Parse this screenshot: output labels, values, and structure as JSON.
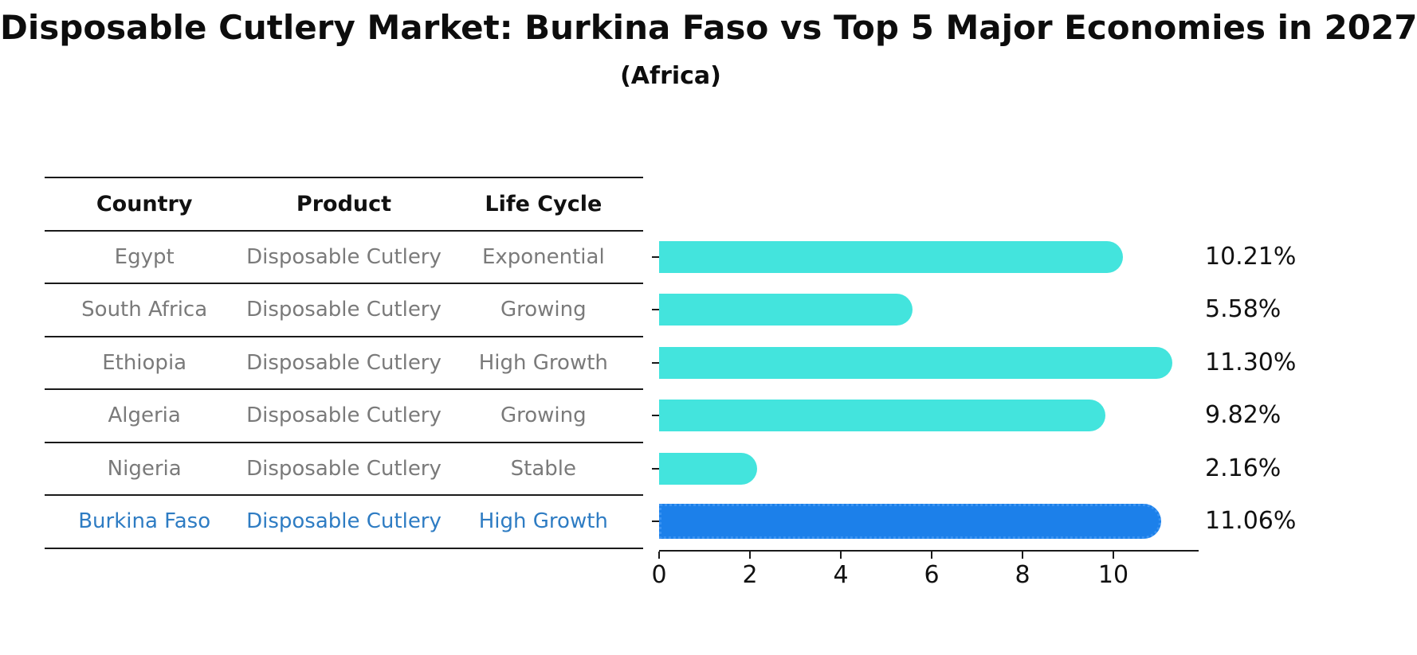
{
  "header": {
    "title": "Disposable Cutlery Market: Burkina Faso vs Top 5 Major Economies in 2027",
    "subtitle": "(Africa)"
  },
  "table": {
    "headers": [
      "Country",
      "Product",
      "Life Cycle"
    ],
    "rows": [
      {
        "country": "Egypt",
        "product": "Disposable Cutlery",
        "life_cycle": "Exponential",
        "highlight": false
      },
      {
        "country": "South Africa",
        "product": "Disposable Cutlery",
        "life_cycle": "Growing",
        "highlight": false
      },
      {
        "country": "Ethiopia",
        "product": "Disposable Cutlery",
        "life_cycle": "High Growth",
        "highlight": false
      },
      {
        "country": "Algeria",
        "product": "Disposable Cutlery",
        "life_cycle": "Growing",
        "highlight": false
      },
      {
        "country": "Nigeria",
        "product": "Disposable Cutlery",
        "life_cycle": "Stable",
        "highlight": false
      },
      {
        "country": "Burkina Faso",
        "product": "Disposable Cutlery",
        "life_cycle": "High Growth",
        "highlight": true
      }
    ]
  },
  "chart_data": {
    "type": "bar",
    "orientation": "horizontal",
    "title": "Disposable Cutlery Market: Burkina Faso vs Top 5 Major Economies in 2027",
    "subtitle": "(Africa)",
    "categories": [
      "Egypt",
      "South Africa",
      "Ethiopia",
      "Algeria",
      "Nigeria",
      "Burkina Faso"
    ],
    "values": [
      10.21,
      5.58,
      11.3,
      9.82,
      2.16,
      11.06
    ],
    "value_labels": [
      "10.21%",
      "5.58%",
      "11.30%",
      "9.82%",
      "2.16%",
      "11.06%"
    ],
    "unit": "%",
    "xlim": [
      0,
      11.87
    ],
    "xticks": [
      0,
      2,
      4,
      6,
      8,
      10
    ],
    "grid": false,
    "highlight_index": 5,
    "colors": {
      "bar": "#43E4DD",
      "highlight_bar": "#1C80EA",
      "highlight_text": "#2E7CC3",
      "row_text": "#7a7a7a",
      "axis": "#1a1a1a",
      "label": "#111111"
    }
  }
}
